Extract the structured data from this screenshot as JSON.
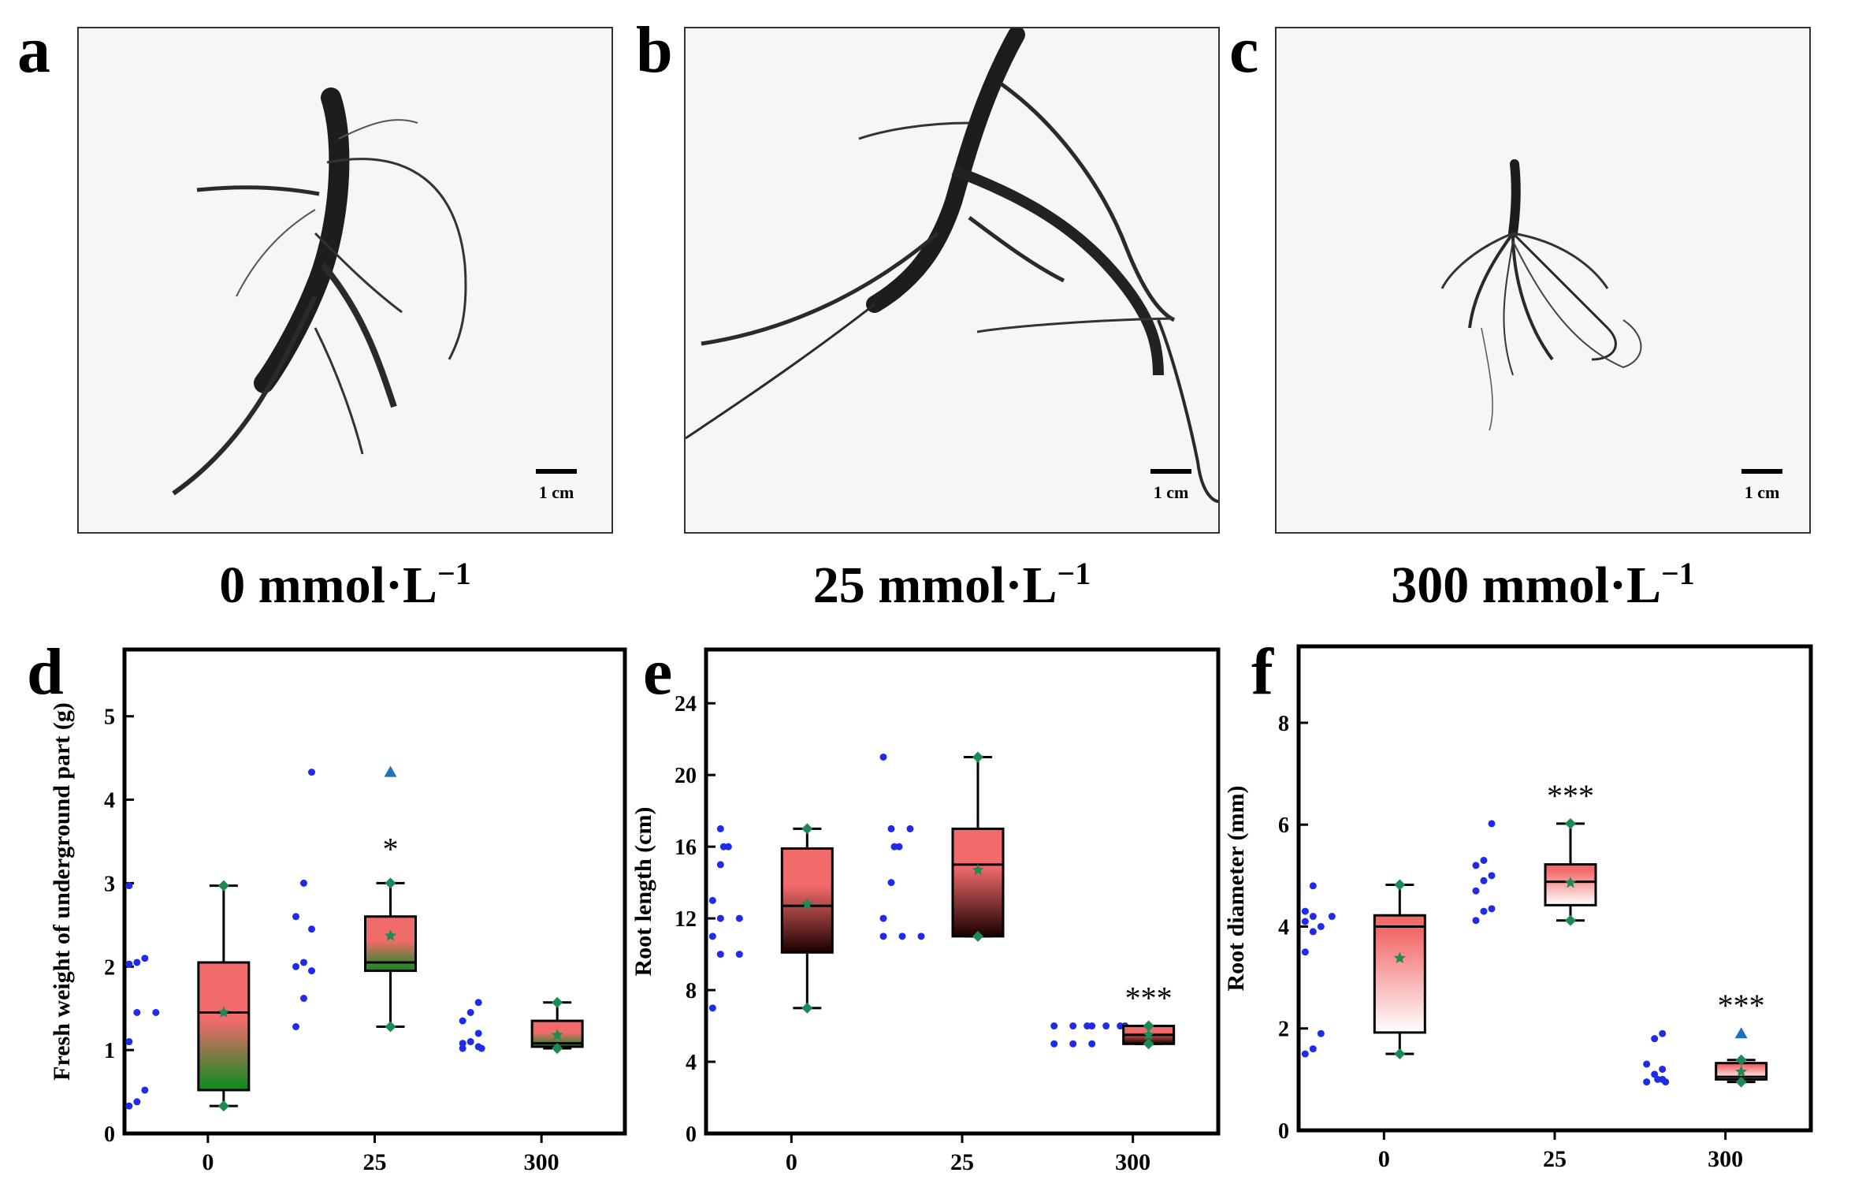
{
  "photos": [
    {
      "letter": "a",
      "scale_label": "1 cm",
      "conc_value": "0",
      "conc_unit": "mmol·L",
      "conc_exp": "−1"
    },
    {
      "letter": "b",
      "scale_label": "1 cm",
      "conc_value": "25",
      "conc_unit": "mmol·L",
      "conc_exp": "−1"
    },
    {
      "letter": "c",
      "scale_label": "1 cm",
      "conc_value": "300",
      "conc_unit": "mmol·L",
      "conc_exp": "−1"
    }
  ],
  "colors": {
    "box_top": "#f26b6b",
    "box_green": "#0a8c1e",
    "box_dark": "#1a0000",
    "box_white": "#ffffff",
    "points": "#1f2be8",
    "markers": "#1d8a55",
    "outlier": "#1f6fbf"
  },
  "chart_data": [
    {
      "type": "box",
      "panel_letter": "d",
      "ylabel": "Fresh weight of underground part (g)",
      "categories": [
        "0",
        "25",
        "300"
      ],
      "ylim": [
        0,
        5.8
      ],
      "yticks": [
        0,
        1,
        2,
        3,
        4,
        5
      ],
      "fill": "red-green",
      "boxes": [
        {
          "min": 0.33,
          "q1": 0.52,
          "median": 1.45,
          "q3": 2.05,
          "max": 2.97,
          "mean": 1.45,
          "outliers": [],
          "significance": ""
        },
        {
          "min": 1.28,
          "q1": 1.95,
          "median": 2.05,
          "q3": 2.6,
          "max": 3.0,
          "mean": 2.37,
          "outliers": [
            4.33
          ],
          "significance": "*"
        },
        {
          "min": 1.02,
          "q1": 1.04,
          "median": 1.08,
          "q3": 1.35,
          "max": 1.57,
          "mean": 1.18,
          "outliers": [],
          "significance": ""
        }
      ],
      "points": [
        [
          0.33,
          0.38,
          0.52,
          1.1,
          1.45,
          1.45,
          2.03,
          2.05,
          2.1,
          2.97
        ],
        [
          1.28,
          1.62,
          1.95,
          2.0,
          2.05,
          2.45,
          2.6,
          3.0,
          4.33
        ],
        [
          1.02,
          1.02,
          1.04,
          1.08,
          1.1,
          1.2,
          1.35,
          1.45,
          1.57
        ]
      ]
    },
    {
      "type": "box",
      "panel_letter": "e",
      "ylabel": "Root length (cm)",
      "categories": [
        "0",
        "25",
        "300"
      ],
      "ylim": [
        0,
        27
      ],
      "yticks": [
        0,
        4,
        8,
        12,
        16,
        20,
        24
      ],
      "fill": "red-dark",
      "boxes": [
        {
          "min": 7,
          "q1": 10.1,
          "median": 12.7,
          "q3": 15.9,
          "max": 17,
          "mean": 12.8,
          "outliers": [],
          "significance": ""
        },
        {
          "min": 11,
          "q1": 11,
          "median": 15,
          "q3": 17,
          "max": 21,
          "mean": 14.7,
          "outliers": [],
          "significance": ""
        },
        {
          "min": 5,
          "q1": 5,
          "median": 5.5,
          "q3": 6,
          "max": 6,
          "mean": 5.5,
          "outliers": [],
          "significance": "***"
        }
      ],
      "points": [
        [
          7,
          10,
          10,
          11,
          12,
          12,
          13,
          15,
          16,
          16,
          17
        ],
        [
          11,
          11,
          11,
          12,
          14,
          16,
          16,
          17,
          17,
          21
        ],
        [
          5,
          5,
          5,
          6,
          6,
          6,
          6,
          6,
          6,
          6
        ]
      ]
    },
    {
      "type": "box",
      "panel_letter": "f",
      "ylabel": "Root diameter (mm)",
      "categories": [
        "0",
        "25",
        "300"
      ],
      "ylim": [
        0,
        9.5
      ],
      "yticks": [
        0,
        2,
        4,
        6,
        8
      ],
      "fill": "red-white",
      "boxes": [
        {
          "min": 1.5,
          "q1": 1.92,
          "median": 4.0,
          "q3": 4.22,
          "max": 4.82,
          "mean": 3.38,
          "outliers": [],
          "significance": ""
        },
        {
          "min": 4.12,
          "q1": 4.42,
          "median": 4.88,
          "q3": 5.22,
          "max": 6.02,
          "mean": 4.86,
          "outliers": [],
          "significance": "***"
        },
        {
          "min": 0.95,
          "q1": 1.0,
          "median": 1.05,
          "q3": 1.32,
          "max": 1.38,
          "mean": 1.15,
          "outliers": [
            1.9
          ],
          "significance": "***"
        }
      ],
      "points": [
        [
          1.5,
          1.6,
          1.9,
          3.5,
          3.9,
          4.0,
          4.1,
          4.2,
          4.2,
          4.3,
          4.8
        ],
        [
          4.12,
          4.3,
          4.35,
          4.7,
          4.9,
          5.0,
          5.2,
          5.3,
          6.02
        ],
        [
          0.95,
          0.95,
          1.0,
          1.0,
          1.1,
          1.2,
          1.3,
          1.8,
          1.9
        ]
      ]
    }
  ]
}
